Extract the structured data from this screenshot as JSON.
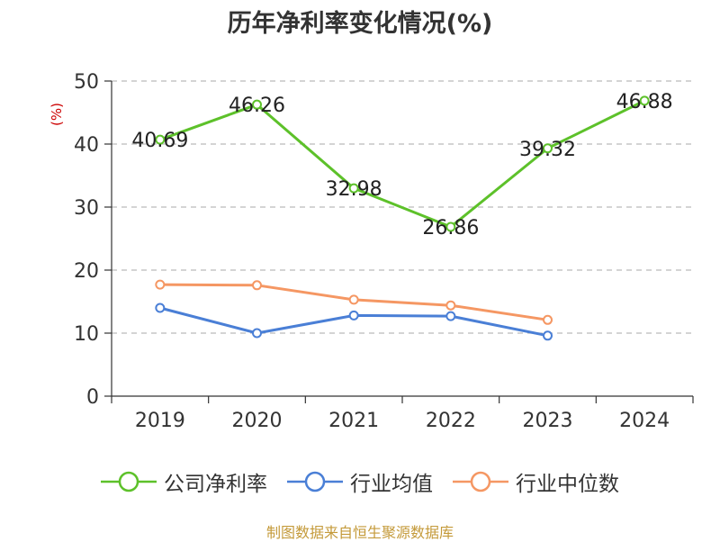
{
  "chart_data": {
    "type": "line",
    "title": "历年净利率变化情况(%)",
    "ylabel": "(%)",
    "categories": [
      "2019",
      "2020",
      "2021",
      "2022",
      "2023",
      "2024"
    ],
    "ylim": [
      0,
      50
    ],
    "yticks": [
      0,
      10,
      20,
      30,
      40,
      50
    ],
    "grid": true,
    "legend_position": "bottom",
    "series": [
      {
        "name": "公司净利率",
        "color": "#5dc12a",
        "values": [
          40.69,
          46.26,
          32.98,
          26.86,
          39.32,
          46.88
        ],
        "show_labels": true
      },
      {
        "name": "行业均值",
        "color": "#4a7fd6",
        "values": [
          14.0,
          10.0,
          12.8,
          12.7,
          9.6,
          null
        ],
        "show_labels": false
      },
      {
        "name": "行业中位数",
        "color": "#f59763",
        "values": [
          17.7,
          17.6,
          15.3,
          14.4,
          12.1,
          null
        ],
        "show_labels": false
      }
    ]
  },
  "source": {
    "text": "制图数据来自恒生聚源数据库",
    "color": "#c49a3a"
  },
  "ylabel_color": "#cc0000"
}
